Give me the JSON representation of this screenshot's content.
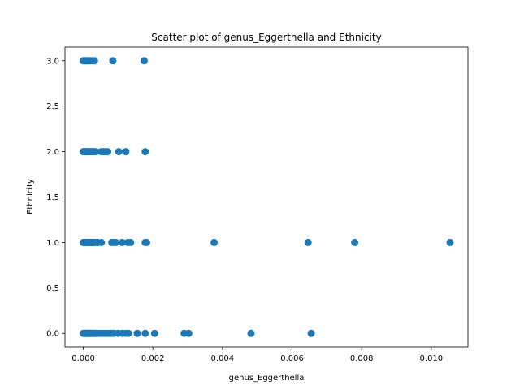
{
  "chart_data": {
    "type": "scatter",
    "title": "Scatter plot of genus_Eggerthella and Ethnicity",
    "xlabel": "genus_Eggerthella",
    "ylabel": "Ethnicity",
    "xlim": [
      -0.000526,
      0.011054
    ],
    "ylim": [
      -0.15,
      3.15
    ],
    "xticks": [
      0.0,
      0.002,
      0.004,
      0.006,
      0.008,
      0.01
    ],
    "xtick_labels": [
      "0.000",
      "0.002",
      "0.004",
      "0.006",
      "0.008",
      "0.010"
    ],
    "yticks": [
      0.0,
      0.5,
      1.0,
      1.5,
      2.0,
      2.5,
      3.0
    ],
    "ytick_labels": [
      "0.0",
      "0.5",
      "1.0",
      "1.5",
      "2.0",
      "2.5",
      "3.0"
    ],
    "grid": false,
    "color": "#1f77b4",
    "points": [
      {
        "x": 0.0,
        "y": 3
      },
      {
        "x": 3e-05,
        "y": 3
      },
      {
        "x": 6e-05,
        "y": 3
      },
      {
        "x": 9e-05,
        "y": 3
      },
      {
        "x": 0.00012,
        "y": 3
      },
      {
        "x": 0.00016,
        "y": 3
      },
      {
        "x": 0.0002,
        "y": 3
      },
      {
        "x": 0.00026,
        "y": 3
      },
      {
        "x": 0.00032,
        "y": 3
      },
      {
        "x": 0.00085,
        "y": 3
      },
      {
        "x": 0.00175,
        "y": 3
      },
      {
        "x": 0.0,
        "y": 2
      },
      {
        "x": 2e-05,
        "y": 2
      },
      {
        "x": 4e-05,
        "y": 2
      },
      {
        "x": 7e-05,
        "y": 2
      },
      {
        "x": 0.0001,
        "y": 2
      },
      {
        "x": 0.00013,
        "y": 2
      },
      {
        "x": 0.00016,
        "y": 2
      },
      {
        "x": 0.00019,
        "y": 2
      },
      {
        "x": 0.00023,
        "y": 2
      },
      {
        "x": 0.00027,
        "y": 2
      },
      {
        "x": 0.00031,
        "y": 2
      },
      {
        "x": 0.00036,
        "y": 2
      },
      {
        "x": 0.00052,
        "y": 2
      },
      {
        "x": 0.00058,
        "y": 2
      },
      {
        "x": 0.00064,
        "y": 2
      },
      {
        "x": 0.0007,
        "y": 2
      },
      {
        "x": 0.00102,
        "y": 2
      },
      {
        "x": 0.00122,
        "y": 2
      },
      {
        "x": 0.00178,
        "y": 2
      },
      {
        "x": 0.0,
        "y": 1
      },
      {
        "x": 2e-05,
        "y": 1
      },
      {
        "x": 4e-05,
        "y": 1
      },
      {
        "x": 6e-05,
        "y": 1
      },
      {
        "x": 8e-05,
        "y": 1
      },
      {
        "x": 0.0001,
        "y": 1
      },
      {
        "x": 0.00012,
        "y": 1
      },
      {
        "x": 0.00015,
        "y": 1
      },
      {
        "x": 0.00018,
        "y": 1
      },
      {
        "x": 0.00021,
        "y": 1
      },
      {
        "x": 0.00024,
        "y": 1
      },
      {
        "x": 0.00027,
        "y": 1
      },
      {
        "x": 0.0003,
        "y": 1
      },
      {
        "x": 0.00035,
        "y": 1
      },
      {
        "x": 0.00042,
        "y": 1
      },
      {
        "x": 0.00052,
        "y": 1
      },
      {
        "x": 0.00082,
        "y": 1
      },
      {
        "x": 0.00088,
        "y": 1
      },
      {
        "x": 0.00094,
        "y": 1
      },
      {
        "x": 0.00112,
        "y": 1
      },
      {
        "x": 0.00128,
        "y": 1
      },
      {
        "x": 0.00136,
        "y": 1
      },
      {
        "x": 0.00178,
        "y": 1
      },
      {
        "x": 0.00182,
        "y": 1
      },
      {
        "x": 0.00376,
        "y": 1
      },
      {
        "x": 0.00646,
        "y": 1
      },
      {
        "x": 0.0078,
        "y": 1
      },
      {
        "x": 0.01054,
        "y": 1
      },
      {
        "x": 0.0,
        "y": 0
      },
      {
        "x": 2e-05,
        "y": 0
      },
      {
        "x": 4e-05,
        "y": 0
      },
      {
        "x": 6e-05,
        "y": 0
      },
      {
        "x": 8e-05,
        "y": 0
      },
      {
        "x": 0.0001,
        "y": 0
      },
      {
        "x": 0.00012,
        "y": 0
      },
      {
        "x": 0.00014,
        "y": 0
      },
      {
        "x": 0.00016,
        "y": 0
      },
      {
        "x": 0.00018,
        "y": 0
      },
      {
        "x": 0.0002,
        "y": 0
      },
      {
        "x": 0.00023,
        "y": 0
      },
      {
        "x": 0.00026,
        "y": 0
      },
      {
        "x": 0.00029,
        "y": 0
      },
      {
        "x": 0.00032,
        "y": 0
      },
      {
        "x": 0.00035,
        "y": 0
      },
      {
        "x": 0.0004,
        "y": 0
      },
      {
        "x": 0.00048,
        "y": 0
      },
      {
        "x": 0.00056,
        "y": 0
      },
      {
        "x": 0.00064,
        "y": 0
      },
      {
        "x": 0.00072,
        "y": 0
      },
      {
        "x": 0.0008,
        "y": 0
      },
      {
        "x": 0.00088,
        "y": 0
      },
      {
        "x": 0.001,
        "y": 0
      },
      {
        "x": 0.00112,
        "y": 0
      },
      {
        "x": 0.00122,
        "y": 0
      },
      {
        "x": 0.0013,
        "y": 0
      },
      {
        "x": 0.00155,
        "y": 0
      },
      {
        "x": 0.00178,
        "y": 0
      },
      {
        "x": 0.00205,
        "y": 0
      },
      {
        "x": 0.0029,
        "y": 0
      },
      {
        "x": 0.00303,
        "y": 0
      },
      {
        "x": 0.00482,
        "y": 0
      },
      {
        "x": 0.00655,
        "y": 0
      }
    ]
  }
}
